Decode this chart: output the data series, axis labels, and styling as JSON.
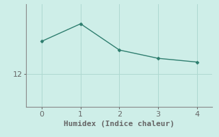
{
  "x": [
    0,
    1,
    2,
    3,
    4
  ],
  "y": [
    13.5,
    14.3,
    13.1,
    12.72,
    12.55
  ],
  "line_color": "#2d7d6e",
  "marker": "D",
  "markersize": 2.5,
  "xlabel": "Humidex (Indice chaleur)",
  "xlabel_fontsize": 8,
  "background_color": "#ceeee8",
  "grid_color": "#aed8d0",
  "tick_color": "#666666",
  "ylim": [
    10.5,
    15.2
  ],
  "xlim": [
    -0.4,
    4.4
  ],
  "yticks": [
    12
  ],
  "xticks": [
    0,
    1,
    2,
    3,
    4
  ],
  "linewidth": 1.0,
  "spine_color": "#888888"
}
